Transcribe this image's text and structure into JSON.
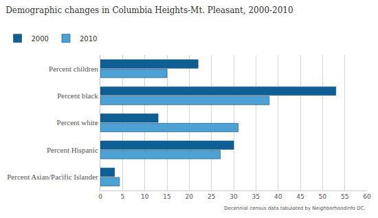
{
  "chart_data": {
    "type": "bar",
    "orientation": "horizontal",
    "title": "Demographic changes in Columbia Heights-Mt. Pleasant, 2000-2010",
    "categories": [
      "Percent children",
      "Percent black",
      "Percent white",
      "Percent Hispanic",
      "Percent Asian/Pacific Islander"
    ],
    "series": [
      {
        "name": "2000",
        "color": "#0e5f94",
        "values": [
          22,
          53,
          13,
          30,
          3.2
        ]
      },
      {
        "name": "2010",
        "color": "#4ea2d3",
        "values": [
          15,
          38,
          31,
          27,
          4.3
        ]
      }
    ],
    "xlim": [
      0,
      60
    ],
    "xticks": [
      0,
      5,
      10,
      15,
      20,
      25,
      30,
      35,
      40,
      45,
      50,
      55,
      60
    ],
    "grid": true,
    "legend": "top-left",
    "annotations": [
      "Decennial census data tabulated by NeighborhoodInfo DC."
    ]
  }
}
